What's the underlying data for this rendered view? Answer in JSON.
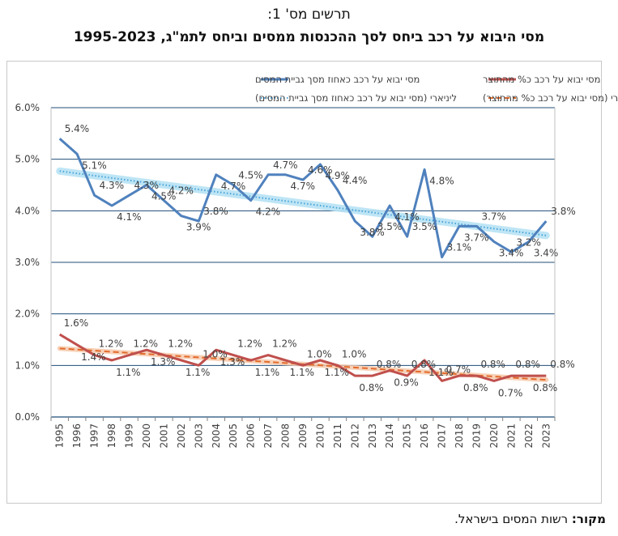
{
  "title_line1": "תרשים מס' 1:",
  "title_line2": "מסי היבוא על רכב ביחס לסך ההכנסות ממסים וביחס לתמ\"ג, 1995-2023",
  "source_label": "מקור:",
  "source_text": " רשות המסים בישראל.",
  "colors": {
    "series_revenue": "#4f81bd",
    "series_gdp": "#c0504d",
    "trend_revenue": "#4aa3d8",
    "trend_revenue_glow": "#b7e3f5",
    "trend_gdp": "#e26b2c",
    "grid": "#1f4e79"
  },
  "chart_data": {
    "type": "line",
    "x": [
      "1995",
      "1996",
      "1997",
      "1998",
      "1999",
      "2000",
      "2001",
      "2002",
      "2003",
      "2004",
      "2005",
      "2006",
      "2007",
      "2008",
      "2009",
      "2010",
      "2011",
      "2012",
      "2013",
      "2014",
      "2015",
      "2016",
      "2017",
      "2018",
      "2019",
      "2020",
      "2021",
      "2022",
      "2023"
    ],
    "ylim": [
      0,
      6
    ],
    "yticks": [
      "0.0%",
      "1.0%",
      "2.0%",
      "3.0%",
      "4.0%",
      "5.0%",
      "6.0%"
    ],
    "grid": true,
    "legend_position": "top",
    "series": [
      {
        "name": "מסי יבוא על רכב כאחוז מסך גביית המסים",
        "values": [
          5.4,
          5.1,
          4.3,
          4.1,
          4.3,
          4.5,
          4.2,
          3.9,
          3.8,
          4.7,
          4.5,
          4.2,
          4.7,
          4.7,
          4.6,
          4.9,
          4.4,
          3.8,
          3.5,
          4.1,
          3.5,
          4.8,
          3.1,
          3.7,
          3.7,
          3.4,
          3.2,
          3.4,
          3.8
        ],
        "labels": [
          "5.4%",
          "5.1%",
          "4.3%",
          "4.1%",
          "4.3%",
          "4.5%",
          "4.2%",
          "3.9%",
          "3.8%",
          "4.7%",
          "4.5%",
          "4.2%",
          "4.7%",
          "4.7%",
          "4.6%",
          "4.9%",
          "4.4%",
          "3.8%",
          "3.5%",
          "4.1%",
          "3.5%",
          "4.8%",
          "3.1%",
          "3.7%",
          "3.7%",
          "3.4%",
          "3.2%",
          "3.4%",
          "3.8%"
        ],
        "trend": [
          4.77,
          3.52
        ]
      },
      {
        "name": "מסי יבוא על רכב כ% מהתוצר",
        "values": [
          1.6,
          1.4,
          1.2,
          1.1,
          1.2,
          1.3,
          1.2,
          1.1,
          1.0,
          1.3,
          1.2,
          1.1,
          1.2,
          1.1,
          1.0,
          1.1,
          1.0,
          0.8,
          0.8,
          0.9,
          0.8,
          1.1,
          0.7,
          0.8,
          0.8,
          0.7,
          0.8,
          0.8,
          0.8
        ],
        "labels": [
          "1.6%",
          "1.4%",
          "1.2%",
          "1.1%",
          "1.2%",
          "1.3%",
          "1.2%",
          "1.1%",
          "1.0%",
          "1.3%",
          "1.2%",
          "1.1%",
          "1.2%",
          "1.1%",
          "1.0%",
          "1.1%",
          "1.0%",
          "0.8%",
          "0.8%",
          "0.9%",
          "0.8%",
          "1.1%",
          "0.7%",
          "0.8%",
          "0.8%",
          "0.7%",
          "0.8%",
          "0.8%",
          "0.8%"
        ],
        "trend": [
          1.33,
          0.72
        ]
      }
    ],
    "legend": {
      "revenue": "מסי יבוא על רכב כאחוז מסך גביית המסים",
      "gdp": "מסי יבוא על רכב כ% מהתוצר",
      "revenue_trend": "ליניארי (מסי יבוא על רכב כאחוז מסך גביית המסים)",
      "gdp_trend": "ליניארי (מסי יבוא על רכב כ% מהתוצר)"
    }
  }
}
